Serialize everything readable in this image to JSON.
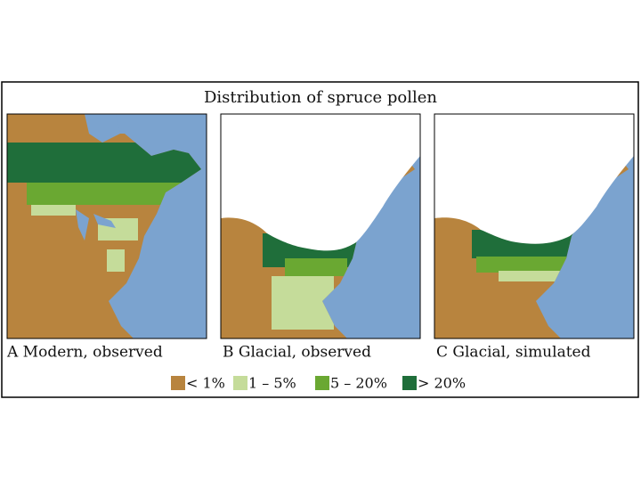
{
  "title": "Distribution of spruce pollen",
  "panels": [
    {
      "label": "A  Modern, observed"
    },
    {
      "label": "B  Glacial, observed"
    },
    {
      "label": "C  Glacial, simulated"
    }
  ],
  "legend": [
    {
      "label": "< 1%",
      "color": "#b8843e"
    },
    {
      "label": "1 – 5%",
      "color": "#c5dc9a"
    },
    {
      "label": "5 – 20%",
      "color": "#6aa832"
    },
    {
      "label": "> 20%",
      "color": "#1f6e3a"
    }
  ]
}
